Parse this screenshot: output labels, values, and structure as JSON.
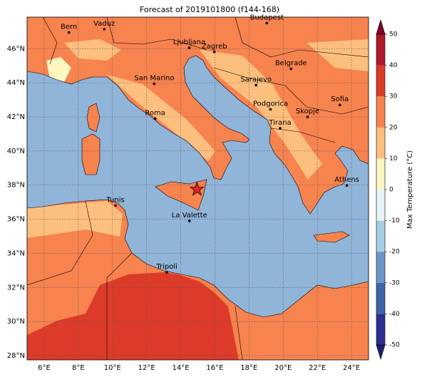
{
  "title": "Forecast of 2019101800 (f144-168)",
  "map": {
    "lonlim": [
      5,
      25
    ],
    "latlim": [
      27.75,
      47.85
    ],
    "xticks": [
      {
        "value": 6,
        "label": "6°E"
      },
      {
        "value": 8,
        "label": "8°E"
      },
      {
        "value": 10,
        "label": "10°E"
      },
      {
        "value": 12,
        "label": "12°E"
      },
      {
        "value": 14,
        "label": "14°E"
      },
      {
        "value": 16,
        "label": "16°E"
      },
      {
        "value": 18,
        "label": "18°E"
      },
      {
        "value": 20,
        "label": "20°E"
      },
      {
        "value": 22,
        "label": "22°E"
      },
      {
        "value": 24,
        "label": "24°E"
      }
    ],
    "yticks": [
      {
        "value": 28,
        "label": "28°N"
      },
      {
        "value": 30,
        "label": "30°N"
      },
      {
        "value": 32,
        "label": "32°N"
      },
      {
        "value": 34,
        "label": "34°N"
      },
      {
        "value": 36,
        "label": "36°N"
      },
      {
        "value": 38,
        "label": "38°N"
      },
      {
        "value": 40,
        "label": "40°N"
      },
      {
        "value": 42,
        "label": "42°N"
      },
      {
        "value": 44,
        "label": "44°N"
      },
      {
        "value": 46,
        "label": "46°N"
      }
    ],
    "cities": [
      {
        "name": "Bern",
        "lon": 7.45,
        "lat": 46.95
      },
      {
        "name": "Vaduz",
        "lon": 9.52,
        "lat": 47.14
      },
      {
        "name": "Budapest",
        "lon": 19.04,
        "lat": 47.5
      },
      {
        "name": "Ljubljana",
        "lon": 14.5,
        "lat": 46.05
      },
      {
        "name": "Zagreb",
        "lon": 15.97,
        "lat": 45.81
      },
      {
        "name": "Belgrade",
        "lon": 20.46,
        "lat": 44.82
      },
      {
        "name": "San Marino",
        "lon": 12.45,
        "lat": 43.94
      },
      {
        "name": "Sarajevo",
        "lon": 18.41,
        "lat": 43.86
      },
      {
        "name": "Sofia",
        "lon": 23.32,
        "lat": 42.7
      },
      {
        "name": "Roma",
        "lon": 12.5,
        "lat": 41.9
      },
      {
        "name": "Podgorica",
        "lon": 19.26,
        "lat": 42.44
      },
      {
        "name": "Skopje",
        "lon": 21.43,
        "lat": 42.0
      },
      {
        "name": "Tirana",
        "lon": 19.82,
        "lat": 41.33
      },
      {
        "name": "Athens",
        "lon": 23.73,
        "lat": 37.98
      },
      {
        "name": "Tunis",
        "lon": 10.18,
        "lat": 36.8
      },
      {
        "name": "La Valette",
        "lon": 14.51,
        "lat": 35.9
      },
      {
        "name": "Tripoli",
        "lon": 13.19,
        "lat": 32.89
      }
    ],
    "marker": {
      "lon": 14.95,
      "lat": 37.75,
      "color": "#d62728"
    }
  },
  "colorbar": {
    "label": "Max Temperature (°C)",
    "lim": [
      -50,
      50
    ],
    "ticks": [
      -50,
      -40,
      -30,
      -20,
      -10,
      0,
      10,
      20,
      30,
      40,
      50
    ],
    "colors": [
      "#2c2f8f",
      "#3d63a8",
      "#6b96c6",
      "#a6cde3",
      "#e4f4f8",
      "#fff6c0",
      "#fdbf7e",
      "#f7834f",
      "#dd3b2a",
      "#b0172b"
    ],
    "under_color": "#1f1f70",
    "over_color": "#7a0022"
  }
}
